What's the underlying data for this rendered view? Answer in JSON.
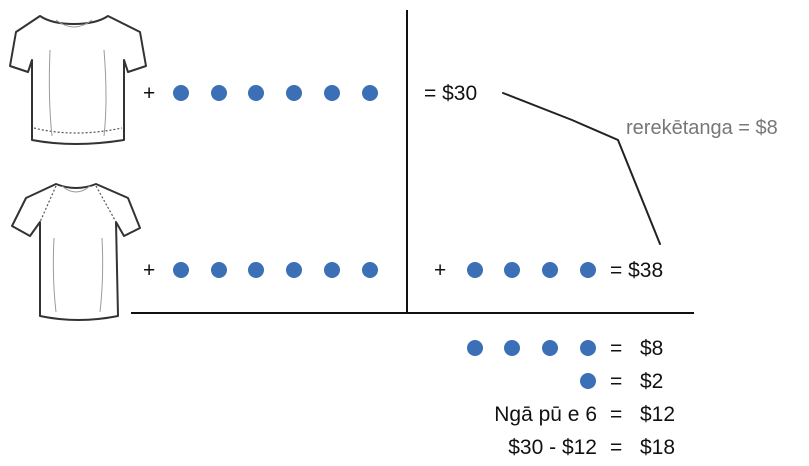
{
  "left": {
    "row1": {
      "plus": "+",
      "dots": 6
    },
    "row2": {
      "plus": "+",
      "dots": 6
    }
  },
  "right": {
    "row1": {
      "equation": "=  $30"
    },
    "row2": {
      "plus": "+",
      "dots": 4,
      "equation": "=  $38"
    },
    "annotation": "rerekētanga = $8"
  },
  "solution": [
    {
      "dots": 4,
      "eq": "=",
      "result": "$8"
    },
    {
      "dots": 1,
      "eq": "=",
      "result": "$2"
    },
    {
      "label": "Ngā pū e 6",
      "eq": "=",
      "result": "$12"
    },
    {
      "label": "$30 - $12",
      "eq": "=",
      "result": "$18"
    }
  ],
  "colors": {
    "dot": "#3b6fb6",
    "ink": "#111111"
  },
  "icons": [
    "tshirt-short-sleeve-icon",
    "tshirt-raglan-icon"
  ]
}
